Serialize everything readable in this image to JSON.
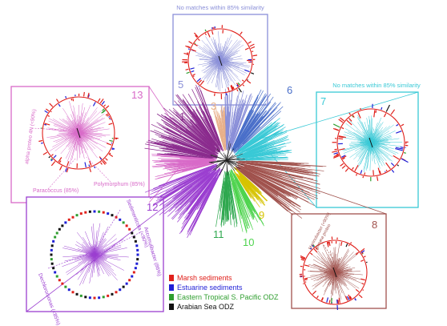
{
  "headers": {
    "top_box": "No matches within 85% similarity",
    "right_box": "No matches within 85% similarity"
  },
  "clusters": [
    {
      "id": "1",
      "color": "#8b2c8e"
    },
    {
      "id": "3",
      "color": "#e8b08a"
    },
    {
      "id": "5",
      "color": "#8a8fd8"
    },
    {
      "id": "6",
      "color": "#4a6fc9"
    },
    {
      "id": "7",
      "color": "#39c9d6"
    },
    {
      "id": "8",
      "color": "#a0524d"
    },
    {
      "id": "9",
      "color": "#d6c300"
    },
    {
      "id": "10",
      "color": "#4fd44f"
    },
    {
      "id": "11",
      "color": "#2fa84f"
    },
    {
      "id": "12",
      "color": "#9b3fd0"
    },
    {
      "id": "13",
      "color": "#d86ac8"
    }
  ],
  "annotations": {
    "box13": [
      "alpha proteo 4N (<90%)",
      "Paracoccus (85%)",
      "Polymorphum (85%)"
    ],
    "box12": [
      "Sedimenticola (<90%)",
      "Accumulibacter (86%)",
      "Dechloromonas (<85%)"
    ],
    "box8": [
      "Marinobacter (<90%)",
      "gamma proteo"
    ]
  },
  "legend": [
    {
      "label": "Marsh sediments",
      "color": "#e0201b"
    },
    {
      "label": "Estuarine sediments",
      "color": "#1f1fd6"
    },
    {
      "label": "Eastern Tropical S. Pacific ODZ",
      "color": "#2f9e2f"
    },
    {
      "label": "Arabian Sea ODZ",
      "color": "#111111"
    }
  ]
}
